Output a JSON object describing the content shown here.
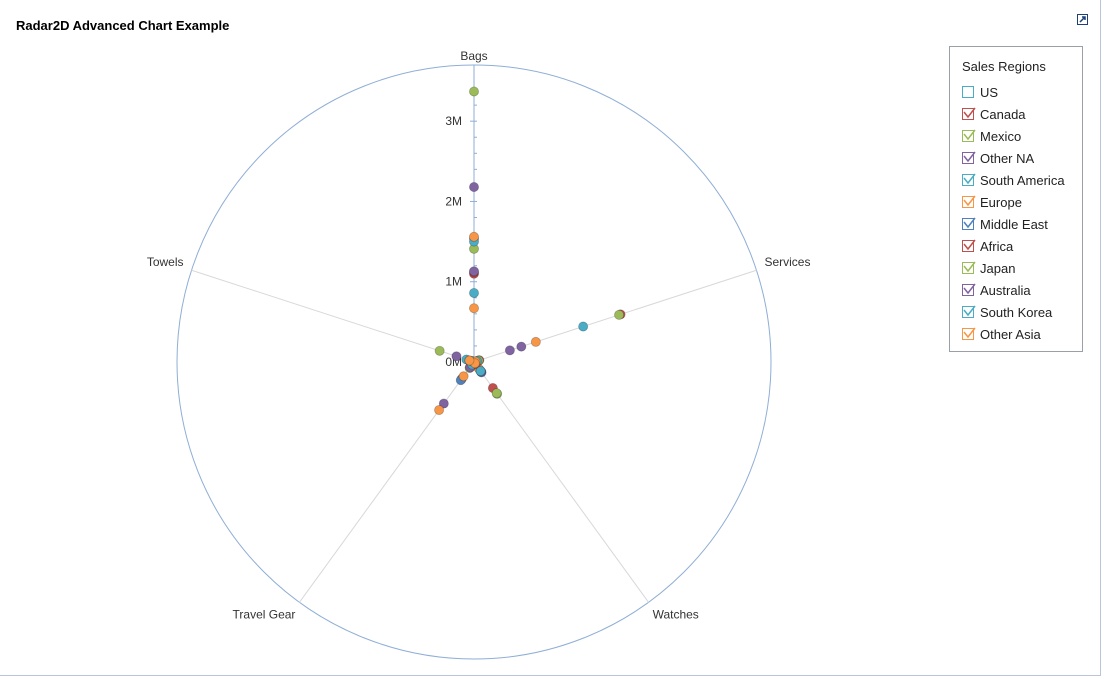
{
  "chart_title": "Radar2D Advanced Chart Example",
  "icons": {
    "expand": "expand-icon"
  },
  "legend": {
    "title": "Sales Regions",
    "items": [
      {
        "label": "US",
        "color": "#4bacc6",
        "checked": false
      },
      {
        "label": "Canada",
        "color": "#c0504d",
        "checked": true
      },
      {
        "label": "Mexico",
        "color": "#9bbb59",
        "checked": true
      },
      {
        "label": "Other NA",
        "color": "#8064a2",
        "checked": true
      },
      {
        "label": "South America",
        "color": "#4bacc6",
        "checked": true
      },
      {
        "label": "Europe",
        "color": "#f79646",
        "checked": true
      },
      {
        "label": "Middle East",
        "color": "#4f81bd",
        "checked": true
      },
      {
        "label": "Africa",
        "color": "#c0504d",
        "checked": true
      },
      {
        "label": "Japan",
        "color": "#9bbb59",
        "checked": true
      },
      {
        "label": "Australia",
        "color": "#8064a2",
        "checked": true
      },
      {
        "label": "South Korea",
        "color": "#4bacc6",
        "checked": true
      },
      {
        "label": "Other Asia",
        "color": "#f79646",
        "checked": true
      }
    ]
  },
  "chart_data": {
    "type": "scatter",
    "subtype": "radar",
    "title": "Radar2D Advanced Chart Example",
    "categories": [
      "Bags",
      "Services",
      "Watches",
      "Travel Gear",
      "Towels"
    ],
    "radial_axis": {
      "ticks": [
        "0M",
        "1M",
        "2M",
        "3M"
      ],
      "tick_values": [
        0,
        1000000,
        2000000,
        3000000
      ],
      "max": 3700000
    },
    "legend_placement": "right",
    "grid": true,
    "series": [
      {
        "name": "Canada",
        "color": "#c0504d",
        "values": [
          1100000,
          1920000,
          400000,
          30000,
          30000
        ]
      },
      {
        "name": "Mexico",
        "color": "#9bbb59",
        "values": [
          3370000,
          1900000,
          490000,
          50000,
          450000
        ]
      },
      {
        "name": "Other NA",
        "color": "#8064a2",
        "values": [
          2180000,
          620000,
          150000,
          640000,
          230000
        ]
      },
      {
        "name": "South America",
        "color": "#4bacc6",
        "values": [
          860000,
          1430000,
          120000,
          260000,
          100000
        ]
      },
      {
        "name": "Europe",
        "color": "#f79646",
        "values": [
          670000,
          810000,
          80000,
          740000,
          40000
        ]
      },
      {
        "name": "Middle East",
        "color": "#4f81bd",
        "values": [
          1540000,
          50000,
          160000,
          280000,
          60000
        ]
      },
      {
        "name": "Africa",
        "color": "#c0504d",
        "values": [
          1120000,
          70000,
          40000,
          90000,
          20000
        ]
      },
      {
        "name": "Japan",
        "color": "#9bbb59",
        "values": [
          1410000,
          60000,
          480000,
          90000,
          40000
        ]
      },
      {
        "name": "Australia",
        "color": "#8064a2",
        "values": [
          1130000,
          470000,
          150000,
          80000,
          30000
        ]
      },
      {
        "name": "South Korea",
        "color": "#4bacc6",
        "values": [
          1500000,
          40000,
          140000,
          40000,
          30000
        ]
      },
      {
        "name": "Other Asia",
        "color": "#f79646",
        "values": [
          1560000,
          20000,
          20000,
          220000,
          60000
        ]
      }
    ]
  }
}
